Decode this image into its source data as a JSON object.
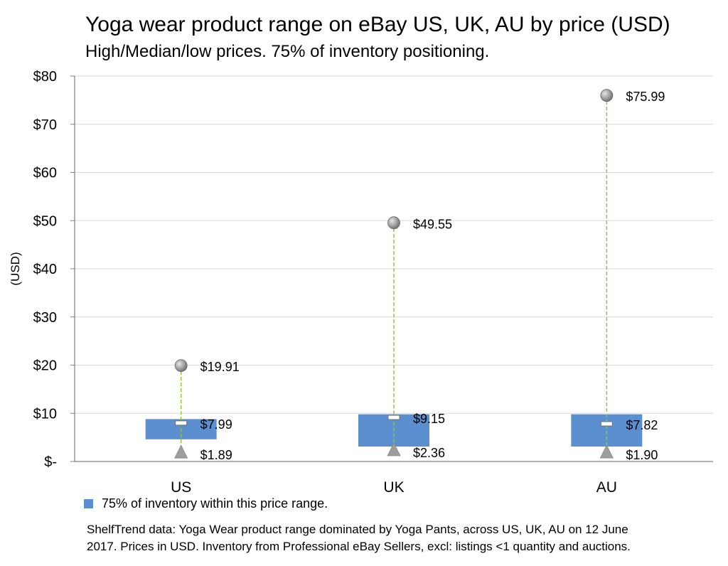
{
  "title": "Yoga wear product range on eBay US, UK, AU by price (USD)",
  "subtitle": "High/Median/low prices. 75% of inventory positioning.",
  "legend_label": "75% of inventory within this price range.",
  "footnote_line1": "ShelfTrend data: Yoga Wear product range dominated by Yoga Pants, across US, UK, AU on 12 June",
  "footnote_line2": "2017.  Prices in USD. Inventory from Professional eBay Sellers, excl: listings <1 quantity and auctions.",
  "colors": {
    "box": "#5b8fd0",
    "whisker": "#8dc63f",
    "grid": "#d9d9d9",
    "axis": "#808080",
    "marker": "#9e9e9e"
  },
  "chart_data": {
    "type": "box-range",
    "ylabel": "(USD)",
    "ylim": [
      0,
      80
    ],
    "y_ticks": [
      {
        "value": 80,
        "label": "$80"
      },
      {
        "value": 70,
        "label": "$70"
      },
      {
        "value": 60,
        "label": "$60"
      },
      {
        "value": 50,
        "label": "$50"
      },
      {
        "value": 40,
        "label": "$40"
      },
      {
        "value": 30,
        "label": "$30"
      },
      {
        "value": 20,
        "label": "$20"
      },
      {
        "value": 10,
        "label": "$10"
      },
      {
        "value": 0,
        "label": "$-"
      }
    ],
    "categories": [
      "US",
      "UK",
      "AU"
    ],
    "high": [
      19.91,
      49.55,
      75.99
    ],
    "high_labels": [
      "$19.91",
      "$49.55",
      "$75.99"
    ],
    "median": [
      7.99,
      9.15,
      7.82
    ],
    "median_labels": [
      "$7.99",
      "$9.15",
      "$7.82"
    ],
    "low": [
      1.89,
      2.36,
      1.9
    ],
    "low_labels": [
      "$1.89",
      "$2.36",
      "$1.90"
    ],
    "box_low": [
      4.6,
      3.1,
      3.1
    ],
    "box_high": [
      8.8,
      9.8,
      9.8
    ],
    "grid": true,
    "legend_position": "bottom-left"
  }
}
